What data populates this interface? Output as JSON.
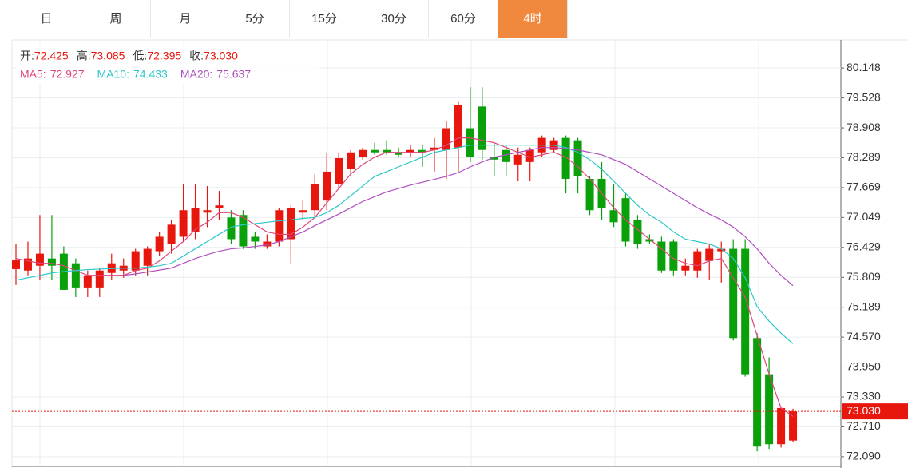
{
  "tabs": {
    "items": [
      "日",
      "周",
      "月",
      "5分",
      "15分",
      "30分",
      "60分",
      "4时"
    ],
    "active": 7
  },
  "header": {
    "ohlc": [
      {
        "label": "开:",
        "value": "72.425"
      },
      {
        "label": "高:",
        "value": "73.085"
      },
      {
        "label": "低:",
        "value": "72.395"
      },
      {
        "label": "收:",
        "value": "73.030"
      }
    ]
  },
  "chart_data": {
    "type": "candlestick",
    "up_color": "#e8170e",
    "down_color": "#0aa00a",
    "ylim": [
      71.89,
      80.73
    ],
    "yticks": [
      80.148,
      79.528,
      78.908,
      78.289,
      77.669,
      77.049,
      76.429,
      75.809,
      75.189,
      {
        "value": 74.57,
        "label": "74.570"
      },
      {
        "value": 73.95,
        "label": "73.950"
      },
      {
        "value": 73.33,
        "label": "73.330"
      },
      {
        "value": 72.71,
        "label": "72.710"
      },
      {
        "value": 72.09,
        "label": "72.090"
      }
    ],
    "grid": true,
    "last_price": {
      "value": 73.03,
      "label": "73.030"
    },
    "open": [
      75.98,
      75.95,
      76.05,
      76.2,
      76.3,
      76.1,
      75.6,
      75.6,
      75.9,
      75.95,
      75.95,
      76.05,
      76.35,
      76.5,
      76.65,
      76.75,
      77.15,
      77.25,
      77.05,
      77.1,
      76.65,
      76.45,
      76.55,
      76.6,
      77.15,
      77.2,
      77.4,
      77.75,
      78.05,
      78.3,
      78.45,
      78.45,
      78.4,
      78.4,
      78.45,
      78.45,
      78.45,
      78.5,
      78.9,
      79.35,
      78.3,
      78.45,
      78.15,
      78.2,
      78.4,
      78.45,
      78.7,
      78.65,
      77.85,
      77.85,
      77.2,
      77.45,
      77.0,
      76.6,
      76.55,
      76.55,
      75.95,
      75.95,
      76.15,
      76.35,
      76.4,
      76.4,
      74.55,
      73.8,
      72.35,
      72.425
    ],
    "high": [
      76.5,
      76.55,
      77.1,
      77.1,
      76.45,
      76.2,
      75.95,
      76.0,
      76.3,
      76.2,
      76.4,
      76.45,
      76.75,
      77.0,
      77.75,
      77.75,
      77.7,
      77.6,
      77.2,
      77.2,
      76.75,
      76.7,
      77.25,
      77.3,
      77.4,
      77.95,
      78.4,
      78.4,
      78.45,
      78.5,
      78.6,
      78.65,
      78.5,
      78.55,
      78.55,
      78.7,
      79.05,
      79.45,
      79.75,
      79.75,
      78.6,
      78.55,
      78.5,
      78.5,
      78.75,
      78.7,
      78.75,
      78.7,
      77.9,
      78.2,
      77.75,
      77.55,
      77.1,
      76.7,
      76.65,
      76.6,
      76.2,
      76.4,
      76.5,
      76.55,
      76.6,
      76.6,
      74.65,
      74.15,
      73.12,
      73.085
    ],
    "low": [
      75.65,
      75.85,
      75.75,
      75.75,
      75.55,
      75.4,
      75.4,
      75.4,
      75.75,
      75.8,
      75.85,
      75.85,
      76.25,
      76.3,
      76.55,
      76.6,
      76.85,
      77.0,
      76.5,
      76.4,
      76.4,
      76.4,
      76.45,
      76.1,
      77.0,
      77.05,
      77.2,
      77.65,
      77.95,
      78.25,
      78.35,
      78.35,
      78.3,
      78.3,
      78.1,
      78.0,
      77.85,
      78.0,
      78.2,
      78.25,
      77.9,
      77.9,
      77.8,
      77.8,
      78.3,
      78.4,
      77.55,
      77.55,
      77.1,
      77.0,
      76.85,
      76.45,
      76.4,
      76.5,
      75.9,
      75.85,
      75.85,
      75.8,
      75.75,
      75.7,
      74.5,
      73.75,
      72.2,
      72.25,
      72.28,
      72.395
    ],
    "close": [
      76.16,
      76.2,
      76.3,
      76.05,
      75.55,
      75.6,
      75.85,
      75.95,
      76.1,
      76.05,
      76.35,
      76.4,
      76.65,
      76.9,
      77.2,
      77.25,
      77.2,
      77.3,
      76.6,
      76.45,
      76.55,
      76.55,
      77.2,
      77.25,
      77.2,
      77.75,
      78.0,
      78.28,
      78.4,
      78.45,
      78.4,
      78.4,
      78.35,
      78.45,
      78.4,
      78.5,
      78.9,
      79.38,
      78.3,
      78.45,
      78.25,
      78.2,
      78.35,
      78.45,
      78.7,
      78.65,
      77.85,
      77.9,
      77.2,
      77.25,
      76.95,
      76.55,
      76.5,
      76.55,
      75.95,
      75.95,
      76.05,
      76.35,
      76.4,
      76.4,
      74.55,
      73.8,
      72.3,
      72.35,
      73.1,
      73.03
    ],
    "series": [
      {
        "name": "MA5:",
        "readout": "72.927",
        "color": "#e0457b",
        "values": [
          76.2,
          76.15,
          76.1,
          76.1,
          76.05,
          75.95,
          75.85,
          75.85,
          75.85,
          75.85,
          75.95,
          76.0,
          76.15,
          76.35,
          76.55,
          76.8,
          76.95,
          77.15,
          77.15,
          77.05,
          76.9,
          76.75,
          76.7,
          76.7,
          76.85,
          77.05,
          77.35,
          77.65,
          77.95,
          78.15,
          78.3,
          78.4,
          78.4,
          78.4,
          78.4,
          78.45,
          78.55,
          78.7,
          78.7,
          78.65,
          78.6,
          78.5,
          78.4,
          78.3,
          78.35,
          78.4,
          78.3,
          78.1,
          77.85,
          77.55,
          77.25,
          77.0,
          76.8,
          76.6,
          76.4,
          76.2,
          76.1,
          76.05,
          76.15,
          76.2,
          75.8,
          75.4,
          74.6,
          73.8,
          73.1,
          72.927
        ]
      },
      {
        "name": "MA10:",
        "readout": "74.433",
        "color": "#2ec7c9",
        "values": [
          75.75,
          75.8,
          75.85,
          75.9,
          75.93,
          75.95,
          75.97,
          75.98,
          75.99,
          76.0,
          76.0,
          76.02,
          76.05,
          76.1,
          76.25,
          76.4,
          76.55,
          76.7,
          76.85,
          76.9,
          76.92,
          76.95,
          76.98,
          77.0,
          77.03,
          77.05,
          77.15,
          77.3,
          77.5,
          77.7,
          77.9,
          78.0,
          78.1,
          78.2,
          78.3,
          78.4,
          78.45,
          78.5,
          78.55,
          78.55,
          78.55,
          78.55,
          78.55,
          78.55,
          78.55,
          78.55,
          78.5,
          78.4,
          78.25,
          78.05,
          77.8,
          77.55,
          77.3,
          77.1,
          76.95,
          76.75,
          76.6,
          76.55,
          76.5,
          76.4,
          76.2,
          75.8,
          75.2,
          74.9,
          74.65,
          74.433
        ]
      },
      {
        "name": "MA20:",
        "readout": "75.637",
        "color": "#b04fc0",
        "values": [
          null,
          null,
          null,
          null,
          null,
          null,
          null,
          null,
          null,
          75.85,
          75.88,
          75.92,
          75.96,
          76.0,
          76.1,
          76.2,
          76.28,
          76.35,
          76.4,
          76.42,
          76.45,
          76.48,
          76.55,
          76.65,
          76.75,
          76.88,
          77.0,
          77.12,
          77.25,
          77.38,
          77.48,
          77.58,
          77.65,
          77.72,
          77.78,
          77.84,
          77.9,
          77.98,
          78.1,
          78.2,
          78.3,
          78.35,
          78.4,
          78.45,
          78.5,
          78.5,
          78.48,
          78.45,
          78.4,
          78.35,
          78.25,
          78.15,
          78.0,
          77.85,
          77.7,
          77.55,
          77.4,
          77.25,
          77.12,
          77.0,
          76.85,
          76.65,
          76.4,
          76.1,
          75.85,
          75.637
        ]
      }
    ]
  }
}
